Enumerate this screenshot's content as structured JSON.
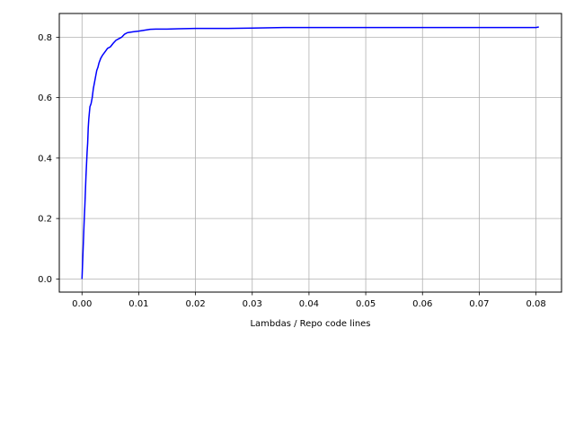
{
  "chart_data": {
    "type": "line",
    "title": "",
    "xlabel": "Lambdas / Repo code lines",
    "ylabel": "",
    "xlim": [
      -0.004,
      0.0845
    ],
    "ylim": [
      -0.0435,
      0.8785
    ],
    "xticks": [
      0.0,
      0.01,
      0.02,
      0.03,
      0.04,
      0.05,
      0.06,
      0.07,
      0.08
    ],
    "xtick_labels": [
      "0.00",
      "0.01",
      "0.02",
      "0.03",
      "0.04",
      "0.05",
      "0.06",
      "0.07",
      "0.08"
    ],
    "yticks": [
      0.0,
      0.2,
      0.4,
      0.6,
      0.8
    ],
    "ytick_labels": [
      "0.0",
      "0.2",
      "0.4",
      "0.6",
      "0.8"
    ],
    "grid": true,
    "colors": {
      "line": "#0000ff",
      "grid": "#b0b0b0",
      "axes": "#000000"
    },
    "series": [
      {
        "x": [
          0.0,
          0.0001,
          0.0002,
          0.0003,
          0.0004,
          0.0005,
          0.0006,
          0.0007,
          0.0008,
          0.0009,
          0.001,
          0.0011,
          0.0012,
          0.0013,
          0.0014,
          0.0016,
          0.0018,
          0.002,
          0.0022,
          0.0024,
          0.0026,
          0.0028,
          0.003,
          0.0033,
          0.0036,
          0.004,
          0.0045,
          0.005,
          0.0055,
          0.006,
          0.0065,
          0.007,
          0.0075,
          0.008,
          0.009,
          0.01,
          0.011,
          0.012,
          0.013,
          0.015,
          0.017,
          0.02,
          0.025,
          0.03,
          0.0355,
          0.04,
          0.05,
          0.06,
          0.07,
          0.08,
          0.0805
        ],
        "y": [
          0.0,
          0.05,
          0.1,
          0.15,
          0.2,
          0.24,
          0.29,
          0.34,
          0.38,
          0.42,
          0.45,
          0.5,
          0.53,
          0.55,
          0.57,
          0.58,
          0.6,
          0.63,
          0.65,
          0.67,
          0.69,
          0.7,
          0.715,
          0.73,
          0.74,
          0.75,
          0.763,
          0.768,
          0.78,
          0.79,
          0.795,
          0.8,
          0.81,
          0.815,
          0.818,
          0.82,
          0.823,
          0.826,
          0.827,
          0.827,
          0.828,
          0.829,
          0.829,
          0.83,
          0.832,
          0.832,
          0.832,
          0.832,
          0.832,
          0.832,
          0.834
        ]
      }
    ]
  }
}
